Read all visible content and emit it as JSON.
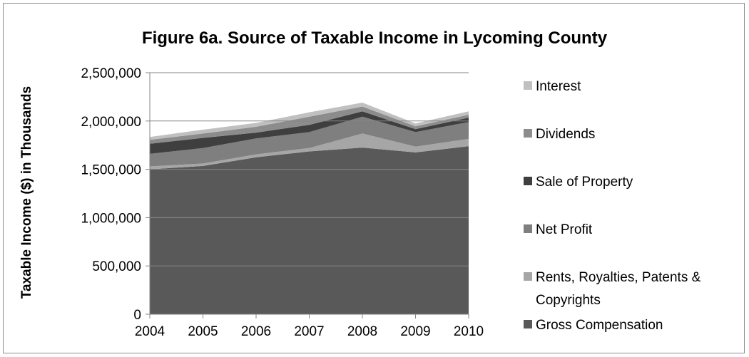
{
  "chart_data": {
    "type": "area",
    "stacked": true,
    "title": "Figure 6a. Source of Taxable Income in Lycoming County",
    "xlabel": "",
    "ylabel": "Taxable Income ($) in Thousands",
    "x": [
      "2004",
      "2005",
      "2006",
      "2007",
      "2008",
      "2009",
      "2010"
    ],
    "ylim": [
      0,
      2500000
    ],
    "yticks": [
      "0",
      "500,000",
      "1,000,000",
      "1,500,000",
      "2,000,000",
      "2,500,000"
    ],
    "grid": true,
    "legend_position": "right",
    "series": [
      {
        "name": "Gross Compensation",
        "color": "#595959",
        "values": [
          1500000,
          1535000,
          1625000,
          1685000,
          1725000,
          1675000,
          1740000
        ]
      },
      {
        "name": "Rents, Royalties, Patents & Copyrights",
        "color": "#a6a6a6",
        "values": [
          30000,
          25000,
          30000,
          35000,
          145000,
          60000,
          75000
        ]
      },
      {
        "name": "Net Profit",
        "color": "#7f7f7f",
        "values": [
          130000,
          160000,
          165000,
          165000,
          175000,
          150000,
          175000
        ]
      },
      {
        "name": "Sale of Property",
        "color": "#3f3f3f",
        "values": [
          105000,
          105000,
          60000,
          75000,
          55000,
          30000,
          45000
        ]
      },
      {
        "name": "Dividends",
        "color": "#8c8c8c",
        "values": [
          40000,
          45000,
          60000,
          85000,
          50000,
          30000,
          30000
        ]
      },
      {
        "name": "Interest",
        "color": "#c0c0c0",
        "values": [
          30000,
          40000,
          40000,
          45000,
          40000,
          30000,
          35000
        ]
      }
    ],
    "legend_order": [
      "Interest",
      "Dividends",
      "Sale of Property",
      "Net Profit",
      "Rents, Royalties, Patents & Copyrights",
      "Gross Compensation"
    ],
    "colors": {
      "axis": "#868686",
      "gridline": "#868686",
      "frame": "#8c8c8c"
    }
  }
}
